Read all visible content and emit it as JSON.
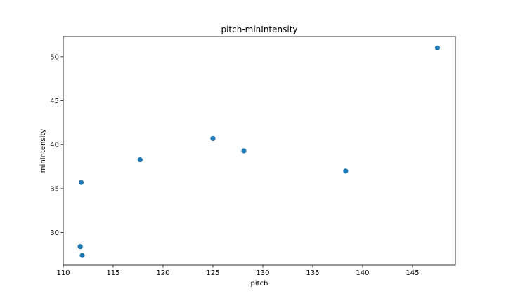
{
  "chart_data": {
    "type": "scatter",
    "title": "pitch-minIntensity",
    "xlabel": "pitch",
    "ylabel": "minIntensity",
    "xlim": [
      110,
      149.3
    ],
    "ylim": [
      26.3,
      52.3
    ],
    "xticks": [
      110,
      115,
      120,
      125,
      130,
      135,
      140,
      145
    ],
    "yticks": [
      30,
      35,
      40,
      45,
      50
    ],
    "grid": false,
    "marker_color": "#1f77b4",
    "points": [
      {
        "x": 111.7,
        "y": 28.4
      },
      {
        "x": 111.9,
        "y": 27.4
      },
      {
        "x": 111.8,
        "y": 35.7
      },
      {
        "x": 117.7,
        "y": 38.3
      },
      {
        "x": 125.0,
        "y": 40.7
      },
      {
        "x": 128.1,
        "y": 39.3
      },
      {
        "x": 138.3,
        "y": 37.0
      },
      {
        "x": 147.5,
        "y": 51.0
      }
    ]
  }
}
